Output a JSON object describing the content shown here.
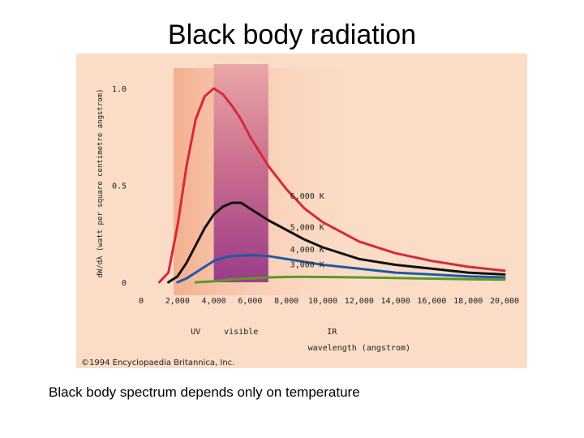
{
  "slide": {
    "title": "Black body radiation",
    "caption": "Black body spectrum depends only on temperature"
  },
  "chart_data": {
    "type": "line",
    "title": "",
    "ylabel": "dW/dλ (watt per square centimetre angstrom)",
    "xlabel": "wavelength (angstrom)",
    "xlim": [
      0,
      20000
    ],
    "ylim": [
      0,
      1.0
    ],
    "x_ticks": [
      {
        "value": 0,
        "label": "0"
      },
      {
        "value": 2000,
        "label": "2,000"
      },
      {
        "value": 4000,
        "label": "4,000"
      },
      {
        "value": 6000,
        "label": "6,000"
      },
      {
        "value": 8000,
        "label": "8,000"
      },
      {
        "value": 10000,
        "label": "10,000"
      },
      {
        "value": 12000,
        "label": "12,000"
      },
      {
        "value": 14000,
        "label": "14,000"
      },
      {
        "value": 16000,
        "label": "16,000"
      },
      {
        "value": 18000,
        "label": "18,000"
      },
      {
        "value": 20000,
        "label": "20,000"
      }
    ],
    "y_ticks": [
      {
        "value": 0,
        "label": "0"
      },
      {
        "value": 0.5,
        "label": "0.5"
      },
      {
        "value": 1.0,
        "label": "1.0"
      }
    ],
    "regions": [
      {
        "label": "UV",
        "x": 3000
      },
      {
        "label": "visible",
        "x": 5500,
        "band": [
          4000,
          7000
        ]
      },
      {
        "label": "IR",
        "x": 10500
      }
    ],
    "series": [
      {
        "name": "6,000 K",
        "color": "#d42a3a",
        "x": [
          1000,
          1500,
          2000,
          2500,
          3000,
          3500,
          4000,
          4500,
          5000,
          5500,
          6000,
          7000,
          8000,
          9000,
          10000,
          12000,
          14000,
          16000,
          18000,
          20000
        ],
        "y": [
          0.0,
          0.05,
          0.29,
          0.6,
          0.84,
          0.96,
          1.0,
          0.97,
          0.91,
          0.84,
          0.75,
          0.6,
          0.48,
          0.38,
          0.31,
          0.21,
          0.15,
          0.11,
          0.08,
          0.06
        ]
      },
      {
        "name": "5,000 K",
        "color": "#111111",
        "x": [
          1500,
          2000,
          2500,
          3000,
          3500,
          4000,
          4500,
          5000,
          5500,
          6000,
          7000,
          8000,
          9000,
          10000,
          12000,
          14000,
          16000,
          18000,
          20000
        ],
        "y": [
          0.0,
          0.03,
          0.1,
          0.19,
          0.28,
          0.35,
          0.39,
          0.41,
          0.41,
          0.38,
          0.32,
          0.27,
          0.22,
          0.18,
          0.12,
          0.09,
          0.07,
          0.05,
          0.04
        ]
      },
      {
        "name": "4,000 K",
        "color": "#1f5aa6",
        "x": [
          2000,
          2500,
          3000,
          3500,
          4000,
          4500,
          5000,
          6000,
          7000,
          8000,
          9000,
          10000,
          12000,
          14000,
          16000,
          18000,
          20000
        ],
        "y": [
          0.0,
          0.02,
          0.05,
          0.08,
          0.11,
          0.125,
          0.135,
          0.14,
          0.135,
          0.12,
          0.105,
          0.09,
          0.07,
          0.05,
          0.04,
          0.03,
          0.025
        ]
      },
      {
        "name": "3,000 K",
        "color": "#5a9a2a",
        "x": [
          3000,
          4000,
          5000,
          6000,
          7000,
          8000,
          9000,
          10000,
          12000,
          14000,
          16000,
          18000,
          20000
        ],
        "y": [
          0.0,
          0.005,
          0.015,
          0.02,
          0.025,
          0.027,
          0.028,
          0.027,
          0.025,
          0.022,
          0.019,
          0.016,
          0.014
        ]
      }
    ],
    "grid": false,
    "legend": "inline labels"
  },
  "copyright": "©1994 Encyclopaedia Britannica, Inc."
}
